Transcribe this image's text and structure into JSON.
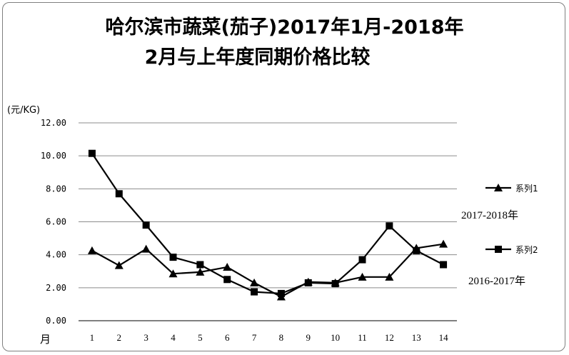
{
  "title_line1": "哈尔滨市蔬菜(茄子)2017年1月-2018年",
  "title_line2": "2月与上年度同期价格比较",
  "chart_data": {
    "type": "line",
    "title": "哈尔滨市蔬菜(茄子)2017年1月-2018年2月与上年度同期价格比较",
    "ylabel": "(元/KG)",
    "xlabel": "月",
    "ylim": [
      0,
      12
    ],
    "yticks": [
      "0.00",
      "2.00",
      "4.00",
      "6.00",
      "8.00",
      "10.00",
      "12.00"
    ],
    "categories": [
      "1",
      "2",
      "3",
      "4",
      "5",
      "6",
      "7",
      "8",
      "9",
      "10",
      "11",
      "12",
      "13",
      "14"
    ],
    "grid": true,
    "legend_position": "right",
    "series": [
      {
        "name": "系列1",
        "marker": "triangle",
        "color": "#000000",
        "values": [
          4.25,
          3.35,
          4.35,
          2.85,
          2.95,
          3.25,
          2.3,
          1.45,
          2.35,
          2.3,
          2.65,
          2.65,
          4.4,
          4.65
        ]
      },
      {
        "name": "系列2",
        "marker": "square",
        "color": "#000000",
        "values": [
          10.15,
          7.7,
          5.8,
          3.85,
          3.4,
          2.5,
          1.75,
          1.65,
          2.3,
          2.25,
          3.7,
          5.75,
          4.25,
          3.4
        ]
      }
    ],
    "annotations": [
      "2017-2018年",
      "2016-2017年"
    ]
  }
}
